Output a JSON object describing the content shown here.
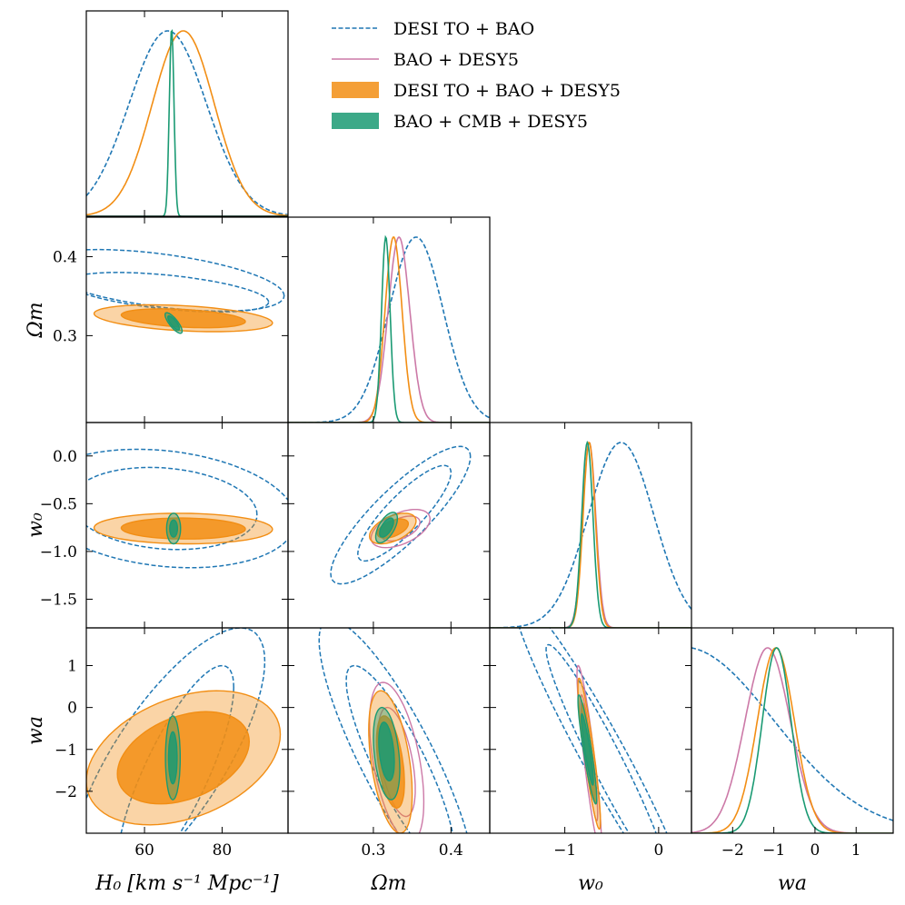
{
  "chart_data": {
    "type": "triangle",
    "title": "",
    "parameters": [
      {
        "name": "H0",
        "label": "H₀ [km s⁻¹ Mpc⁻¹]",
        "range": [
          45,
          97
        ],
        "ticks": [
          60,
          80
        ],
        "tick_labels": [
          "60",
          "80"
        ]
      },
      {
        "name": "Om",
        "label": "Ωm",
        "range": [
          0.19,
          0.45
        ],
        "ticks": [
          0.3,
          0.4
        ],
        "tick_labels": [
          "0.3",
          "0.4"
        ]
      },
      {
        "name": "w0",
        "label": "w₀",
        "range": [
          -1.8,
          0.35
        ],
        "ticks": [
          -1.5,
          -1.0,
          -0.5,
          0.0
        ],
        "tick_labels": [
          "−1.5",
          "−1.0",
          "−0.5",
          "0.0"
        ],
        "x_ticks": [
          -1,
          0
        ],
        "x_tick_labels": [
          "−1",
          "0"
        ]
      },
      {
        "name": "wa",
        "label": "wa",
        "range": [
          -3.0,
          1.9
        ],
        "ticks": [
          -2,
          -1,
          0,
          1
        ],
        "tick_labels": [
          "−2",
          "−1",
          "0",
          "1"
        ]
      }
    ],
    "series": [
      {
        "name": "DESI TO + BAO",
        "color": "#1f77b4",
        "style": "dashed",
        "fill": false,
        "marginals": {
          "H0": {
            "mean": 66,
            "sigma": 10
          },
          "Om": {
            "mean": 0.355,
            "sigma": 0.035
          },
          "w0": {
            "mean": -0.4,
            "sigma": 0.35
          },
          "wa": {
            "mean": -3.2,
            "sigma": 2.2
          }
        }
      },
      {
        "name": "BAO + DESY5",
        "color": "#cc79a7",
        "style": "solid",
        "fill": false,
        "marginals": {
          "Om": {
            "mean": 0.333,
            "sigma": 0.014
          },
          "w0": {
            "mean": -0.74,
            "sigma": 0.07
          },
          "wa": {
            "mean": -1.15,
            "sigma": 0.55
          }
        }
      },
      {
        "name": "DESI TO + BAO + DESY5",
        "color": "#f28e14",
        "style": "filled",
        "fill": true,
        "marginals": {
          "H0": {
            "mean": 70,
            "sigma": 8
          },
          "Om": {
            "mean": 0.326,
            "sigma": 0.011
          },
          "w0": {
            "mean": -0.74,
            "sigma": 0.065
          },
          "wa": {
            "mean": -0.95,
            "sigma": 0.45
          }
        }
      },
      {
        "name": "BAO + CMB + DESY5",
        "color": "#1a9a73",
        "style": "filled",
        "fill": true,
        "marginals": {
          "H0": {
            "mean": 67,
            "sigma": 0.6
          },
          "Om": {
            "mean": 0.316,
            "sigma": 0.0055
          },
          "w0": {
            "mean": -0.76,
            "sigma": 0.06
          },
          "wa": {
            "mean": -0.93,
            "sigma": 0.35
          }
        }
      }
    ],
    "contours_2d": [
      {
        "x": "H0",
        "y": "Om",
        "series": "DESI TO + BAO",
        "outer": [
          [
            64.0,
            0.37
          ],
          [
            32.0,
            0.039
          ],
          [
            -0.5
          ]
        ],
        "inner": [
          [
            66.0,
            0.355
          ],
          [
            26.0,
            0.025
          ],
          [
            -0.5
          ]
        ]
      },
      {
        "x": "H0",
        "y": "Om",
        "series": "DESI TO + BAO + DESY5",
        "outer": [
          [
            70.0,
            0.322
          ],
          [
            23.0,
            0.017
          ],
          [
            -0.35
          ]
        ],
        "inner": [
          [
            70.0,
            0.322
          ],
          [
            16.0,
            0.012
          ],
          [
            -0.35
          ]
        ]
      },
      {
        "x": "H0",
        "y": "Om",
        "series": "BAO + CMB + DESY5",
        "outer": [
          [
            67.5,
            0.316
          ],
          [
            2.2,
            0.013
          ],
          [
            -0.8
          ]
        ],
        "inner": [
          [
            67.5,
            0.316
          ],
          [
            1.5,
            0.009
          ],
          [
            -0.8
          ]
        ]
      },
      {
        "x": "H0",
        "y": "w0",
        "series": "DESI TO + BAO",
        "outer": [
          [
            65.0,
            -0.55
          ],
          [
            34.0,
            0.62
          ],
          [
            -0.2
          ]
        ],
        "inner": [
          [
            65.0,
            -0.55
          ],
          [
            24.0,
            0.43
          ],
          [
            -0.15
          ]
        ]
      },
      {
        "x": "H0",
        "y": "w0",
        "series": "DESI TO + BAO + DESY5",
        "outer": [
          [
            70.0,
            -0.76
          ],
          [
            23.0,
            0.16
          ],
          [
            -0.05
          ]
        ],
        "inner": [
          [
            70.0,
            -0.76
          ],
          [
            16.0,
            0.11
          ],
          [
            -0.05
          ]
        ]
      },
      {
        "x": "H0",
        "y": "w0",
        "series": "BAO + CMB + DESY5",
        "outer": [
          [
            67.5,
            -0.76
          ],
          [
            1.8,
            0.16
          ],
          [
            0
          ]
        ],
        "inner": [
          [
            67.5,
            -0.76
          ],
          [
            1.0,
            0.09
          ],
          [
            0
          ]
        ]
      },
      {
        "x": "H0",
        "y": "wa",
        "series": "DESI TO + BAO",
        "outer": [
          [
            66.0,
            -1.3
          ],
          [
            25.0,
            3.2
          ],
          [
            0.75
          ]
        ],
        "inner": [
          [
            68.0,
            -1.6
          ],
          [
            15.0,
            2.6
          ],
          [
            0.8
          ]
        ]
      },
      {
        "x": "H0",
        "y": "wa",
        "series": "DESI TO + BAO + DESY5",
        "outer": [
          [
            70.0,
            -1.2
          ],
          [
            25.0,
            1.6
          ],
          [
            0.35
          ]
        ],
        "inner": [
          [
            70.0,
            -1.2
          ],
          [
            17.0,
            1.1
          ],
          [
            0.35
          ]
        ]
      },
      {
        "x": "H0",
        "y": "wa",
        "series": "BAO + CMB + DESY5",
        "outer": [
          [
            67.3,
            -1.2
          ],
          [
            1.9,
            1.0
          ],
          [
            0
          ]
        ],
        "inner": [
          [
            67.3,
            -1.2
          ],
          [
            1.1,
            0.62
          ],
          [
            0
          ]
        ]
      },
      {
        "x": "Om",
        "y": "w0",
        "series": "DESI TO + BAO",
        "outer": [
          [
            0.335,
            -0.62
          ],
          [
            0.09,
            0.72
          ],
          [
            0.85
          ]
        ],
        "inner": [
          [
            0.34,
            -0.6
          ],
          [
            0.06,
            0.5
          ],
          [
            0.85
          ]
        ]
      },
      {
        "x": "Om",
        "y": "w0",
        "series": "BAO + DESY5",
        "outer": [
          [
            0.335,
            -0.76
          ],
          [
            0.038,
            0.2
          ],
          [
            0.5
          ]
        ],
        "inner": [
          [
            0.335,
            -0.76
          ],
          [
            0.025,
            0.13
          ],
          [
            0.5
          ]
        ]
      },
      {
        "x": "Om",
        "y": "w0",
        "series": "DESI TO + BAO + DESY5",
        "outer": [
          [
            0.325,
            -0.76
          ],
          [
            0.03,
            0.16
          ],
          [
            0.5
          ]
        ],
        "inner": [
          [
            0.325,
            -0.76
          ],
          [
            0.02,
            0.1
          ],
          [
            0.5
          ]
        ]
      },
      {
        "x": "Om",
        "y": "w0",
        "series": "BAO + CMB + DESY5",
        "outer": [
          [
            0.317,
            -0.75
          ],
          [
            0.014,
            0.16
          ],
          [
            0.6
          ]
        ],
        "inner": [
          [
            0.317,
            -0.75
          ],
          [
            0.009,
            0.1
          ],
          [
            0.6
          ]
        ]
      },
      {
        "x": "Om",
        "y": "wa",
        "series": "DESI TO + BAO",
        "outer": [
          [
            0.33,
            -1.2
          ],
          [
            0.1,
            3.3
          ],
          [
            -0.85
          ]
        ],
        "inner": [
          [
            0.335,
            -1.4
          ],
          [
            0.07,
            2.4
          ],
          [
            -0.85
          ]
        ]
      },
      {
        "x": "Om",
        "y": "wa",
        "series": "BAO + DESY5",
        "outer": [
          [
            0.33,
            -1.3
          ],
          [
            0.035,
            1.9
          ],
          [
            -0.5
          ]
        ],
        "inner": [
          [
            0.33,
            -1.3
          ],
          [
            0.024,
            1.3
          ],
          [
            -0.5
          ]
        ]
      },
      {
        "x": "Om",
        "y": "wa",
        "series": "DESI TO + BAO + DESY5",
        "outer": [
          [
            0.322,
            -1.3
          ],
          [
            0.028,
            1.7
          ],
          [
            -0.45
          ]
        ],
        "inner": [
          [
            0.322,
            -1.3
          ],
          [
            0.018,
            1.1
          ],
          [
            -0.45
          ]
        ]
      },
      {
        "x": "Om",
        "y": "wa",
        "series": "BAO + CMB + DESY5",
        "outer": [
          [
            0.317,
            -1.1
          ],
          [
            0.017,
            1.1
          ],
          [
            -0.35
          ]
        ],
        "inner": [
          [
            0.317,
            -1.05
          ],
          [
            0.01,
            0.7
          ],
          [
            -0.35
          ]
        ]
      },
      {
        "x": "w0",
        "y": "wa",
        "series": "DESI TO + BAO",
        "outer": [
          [
            -0.6,
            -1.1
          ],
          [
            0.95,
            3.8
          ],
          [
            -0.96
          ]
        ],
        "inner": [
          [
            -0.55,
            -1.3
          ],
          [
            0.65,
            2.8
          ],
          [
            -0.96
          ]
        ]
      },
      {
        "x": "w0",
        "y": "wa",
        "series": "BAO + DESY5",
        "outer": [
          [
            -0.74,
            -1.2
          ],
          [
            0.13,
            2.2
          ],
          [
            -0.9
          ]
        ],
        "inner": [
          [
            -0.74,
            -1.2
          ],
          [
            0.09,
            1.5
          ],
          [
            -0.9
          ]
        ]
      },
      {
        "x": "w0",
        "y": "wa",
        "series": "DESI TO + BAO + DESY5",
        "outer": [
          [
            -0.74,
            -1.1
          ],
          [
            0.12,
            1.8
          ],
          [
            -0.9
          ]
        ],
        "inner": [
          [
            -0.74,
            -1.1
          ],
          [
            0.08,
            1.2
          ],
          [
            -0.9
          ]
        ]
      },
      {
        "x": "w0",
        "y": "wa",
        "series": "BAO + CMB + DESY5",
        "outer": [
          [
            -0.76,
            -1.0
          ],
          [
            0.1,
            1.3
          ],
          [
            -0.9
          ]
        ],
        "inner": [
          [
            -0.76,
            -1.0
          ],
          [
            0.065,
            0.85
          ],
          [
            -0.9
          ]
        ]
      }
    ],
    "legend": {
      "position": "top-right",
      "entries": [
        "DESI TO + BAO",
        "BAO + DESY5",
        "DESI TO + BAO + DESY5",
        "BAO + CMB + DESY5"
      ]
    }
  }
}
